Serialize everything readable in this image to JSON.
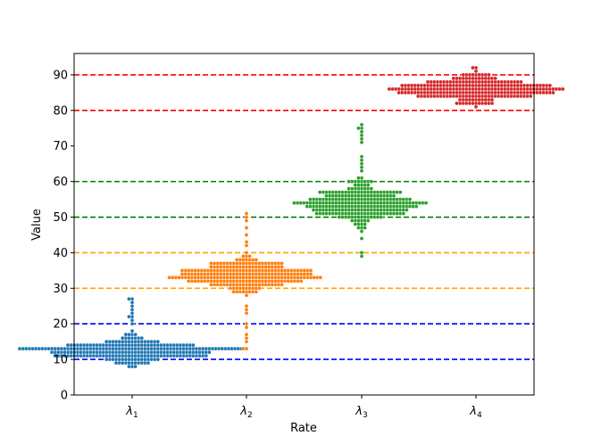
{
  "chart_data": {
    "type": "scatter",
    "subtype": "swarm",
    "xlabel": "Rate",
    "ylabel": "Value",
    "ylim": [
      0,
      96
    ],
    "yticks": [
      0,
      10,
      20,
      30,
      40,
      50,
      60,
      70,
      80,
      90
    ],
    "grid": false,
    "categories": [
      "λ1",
      "λ2",
      "λ3",
      "λ4"
    ],
    "category_labels": [
      {
        "base": "λ",
        "sub": "1"
      },
      {
        "base": "λ",
        "sub": "2"
      },
      {
        "base": "λ",
        "sub": "3"
      },
      {
        "base": "λ",
        "sub": "4"
      }
    ],
    "series": [
      {
        "category": "λ1",
        "color": "#1f77b4",
        "min": 8,
        "max": 27,
        "bulk_range": [
          10,
          15
        ],
        "outliers": [
          8,
          22,
          24,
          25,
          27
        ]
      },
      {
        "category": "λ2",
        "color": "#ff7f0e",
        "min": 13,
        "max": 51,
        "bulk_range": [
          30,
          37
        ],
        "outliers": [
          13,
          16,
          51
        ]
      },
      {
        "category": "λ3",
        "color": "#2ca02c",
        "min": 39,
        "max": 76,
        "bulk_range": [
          50,
          58
        ],
        "outliers": [
          39,
          44,
          74,
          75,
          76
        ]
      },
      {
        "category": "λ4",
        "color": "#d62728",
        "min": 80,
        "max": 92,
        "bulk_range": [
          83,
          89
        ],
        "outliers": [
          92
        ]
      }
    ],
    "reference_lines": [
      {
        "y": 10,
        "color": "#0000ff"
      },
      {
        "y": 20,
        "color": "#0000ff"
      },
      {
        "y": 30,
        "color": "#ffa500"
      },
      {
        "y": 40,
        "color": "#ffa500"
      },
      {
        "y": 50,
        "color": "#008000"
      },
      {
        "y": 60,
        "color": "#008000"
      },
      {
        "y": 80,
        "color": "#ff0000"
      },
      {
        "y": 90,
        "color": "#ff0000"
      }
    ]
  }
}
